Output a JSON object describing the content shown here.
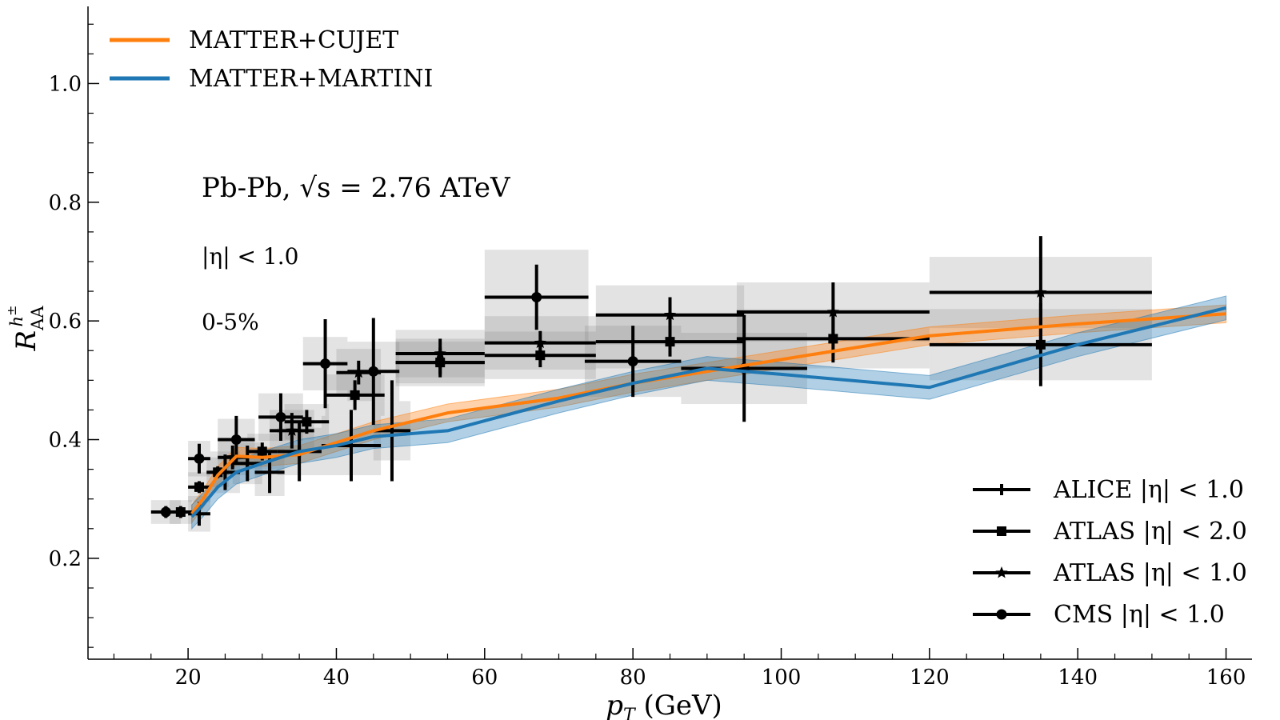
{
  "chart_data": {
    "type": "line",
    "title": "",
    "xlabel": "p_T (GeV)",
    "ylabel": "R_AA^{h±}",
    "xlim": [
      6.5,
      163.5
    ],
    "ylim": [
      0.03,
      1.13
    ],
    "xticks": [
      20,
      40,
      60,
      80,
      100,
      120,
      140,
      160
    ],
    "xtick_labels": [
      "20",
      "40",
      "60",
      "80",
      "100",
      "120",
      "140",
      "160"
    ],
    "yticks": [
      0.2,
      0.4,
      0.6,
      0.8,
      1.0
    ],
    "ytick_labels": [
      "0.2",
      "0.4",
      "0.6",
      "0.8",
      "1.0"
    ],
    "annotations": {
      "system": "Pb-Pb, √s = 2.76 ATeV",
      "eta_cut": "|η| < 1.0",
      "centrality": "0-5%"
    },
    "series": [
      {
        "name": "MATTER+CUJET",
        "color": "#ff7f0e",
        "x": [
          20.5,
          22,
          24,
          26.5,
          30,
          35,
          40,
          45,
          55,
          70,
          80,
          90,
          100,
          120,
          140,
          160
        ],
        "y": [
          0.275,
          0.3,
          0.34,
          0.372,
          0.37,
          0.375,
          0.395,
          0.415,
          0.445,
          0.47,
          0.495,
          0.515,
          0.535,
          0.575,
          0.595,
          0.612
        ],
        "band": 0.015
      },
      {
        "name": "MATTER+MARTINI",
        "color": "#1f77b4",
        "x": [
          20.5,
          22,
          24,
          26.5,
          30,
          35,
          40,
          45,
          55,
          70,
          80,
          90,
          100,
          120,
          140,
          160
        ],
        "y": [
          0.27,
          0.29,
          0.32,
          0.345,
          0.36,
          0.38,
          0.39,
          0.405,
          0.415,
          0.465,
          0.495,
          0.52,
          0.51,
          0.488,
          0.56,
          0.622
        ],
        "band": 0.02
      }
    ],
    "measurements": [
      {
        "name": "ALICE |η| < 1.0",
        "marker": "plus",
        "points": [
          {
            "x": 21.5,
            "y": 0.275,
            "xerr": 1.5,
            "yerr": 0.02,
            "sys": 0.03
          },
          {
            "x": 25,
            "y": 0.345,
            "xerr": 2,
            "yerr": 0.03,
            "sys": 0.035
          },
          {
            "x": 28,
            "y": 0.36,
            "xerr": 2,
            "yerr": 0.03,
            "sys": 0.035
          },
          {
            "x": 31,
            "y": 0.345,
            "xerr": 2,
            "yerr": 0.035,
            "sys": 0.04
          },
          {
            "x": 35,
            "y": 0.38,
            "xerr": 3,
            "yerr": 0.05,
            "sys": 0.04
          },
          {
            "x": 42,
            "y": 0.39,
            "xerr": 4,
            "yerr": 0.06,
            "sys": 0.05
          },
          {
            "x": 47.5,
            "y": 0.415,
            "xerr": 2.5,
            "yerr": 0.085,
            "sys": 0.05
          }
        ]
      },
      {
        "name": "ATLAS |η| < 2.0",
        "marker": "square",
        "points": [
          {
            "x": 19,
            "y": 0.278,
            "xerr": 1.5,
            "yerr": 0.01,
            "sys": 0.02
          },
          {
            "x": 21.5,
            "y": 0.32,
            "xerr": 1.5,
            "yerr": 0.01,
            "sys": 0.025
          },
          {
            "x": 24,
            "y": 0.345,
            "xerr": 1.5,
            "yerr": 0.01,
            "sys": 0.025
          },
          {
            "x": 30,
            "y": 0.38,
            "xerr": 2,
            "yerr": 0.015,
            "sys": 0.03
          },
          {
            "x": 36,
            "y": 0.43,
            "xerr": 3,
            "yerr": 0.02,
            "sys": 0.03
          },
          {
            "x": 42.5,
            "y": 0.475,
            "xerr": 4,
            "yerr": 0.025,
            "sys": 0.035
          },
          {
            "x": 54,
            "y": 0.53,
            "xerr": 6,
            "yerr": 0.02,
            "sys": 0.035
          },
          {
            "x": 67.5,
            "y": 0.542,
            "xerr": 7.5,
            "yerr": 0.02,
            "sys": 0.04
          },
          {
            "x": 85,
            "y": 0.565,
            "xerr": 10,
            "yerr": 0.025,
            "sys": 0.045
          },
          {
            "x": 107,
            "y": 0.57,
            "xerr": 13,
            "yerr": 0.04,
            "sys": 0.05
          },
          {
            "x": 135,
            "y": 0.56,
            "xerr": 15,
            "yerr": 0.07,
            "sys": 0.06
          }
        ]
      },
      {
        "name": "ATLAS |η| < 1.0",
        "marker": "star",
        "points": [
          {
            "x": 26,
            "y": 0.37,
            "xerr": 2,
            "yerr": 0.02,
            "sys": 0.03
          },
          {
            "x": 34,
            "y": 0.415,
            "xerr": 3,
            "yerr": 0.03,
            "sys": 0.035
          },
          {
            "x": 43,
            "y": 0.513,
            "xerr": 3,
            "yerr": 0.02,
            "sys": 0.04
          },
          {
            "x": 54,
            "y": 0.545,
            "xerr": 6,
            "yerr": 0.025,
            "sys": 0.04
          },
          {
            "x": 67.5,
            "y": 0.563,
            "xerr": 7.5,
            "yerr": 0.02,
            "sys": 0.045
          },
          {
            "x": 85,
            "y": 0.61,
            "xerr": 10,
            "yerr": 0.03,
            "sys": 0.05
          },
          {
            "x": 107,
            "y": 0.615,
            "xerr": 13,
            "yerr": 0.05,
            "sys": 0.05
          },
          {
            "x": 135,
            "y": 0.648,
            "xerr": 15,
            "yerr": 0.095,
            "sys": 0.06
          }
        ]
      },
      {
        "name": "CMS |η| < 1.0",
        "marker": "circle",
        "points": [
          {
            "x": 17,
            "y": 0.278,
            "xerr": 2,
            "yerr": 0.01,
            "sys": 0.02
          },
          {
            "x": 21.5,
            "y": 0.368,
            "xerr": 1.5,
            "yerr": 0.025,
            "sys": 0.03
          },
          {
            "x": 26.5,
            "y": 0.4,
            "xerr": 2.5,
            "yerr": 0.04,
            "sys": 0.035
          },
          {
            "x": 32.5,
            "y": 0.438,
            "xerr": 3,
            "yerr": 0.04,
            "sys": 0.04
          },
          {
            "x": 38.5,
            "y": 0.528,
            "xerr": 3,
            "yerr": 0.075,
            "sys": 0.045
          },
          {
            "x": 45,
            "y": 0.515,
            "xerr": 3.5,
            "yerr": 0.09,
            "sys": 0.05
          },
          {
            "x": 54,
            "y": 0.53,
            "xerr": 6,
            "yerr": 0.025,
            "sys": 0.04
          },
          {
            "x": 67,
            "y": 0.64,
            "xerr": 7,
            "yerr": 0.055,
            "sys": 0.08
          },
          {
            "x": 80,
            "y": 0.532,
            "xerr": 6.5,
            "yerr": 0.06,
            "sys": 0.06
          },
          {
            "x": 95,
            "y": 0.52,
            "xerr": 8.5,
            "yerr": 0.09,
            "sys": 0.06
          }
        ]
      }
    ]
  }
}
